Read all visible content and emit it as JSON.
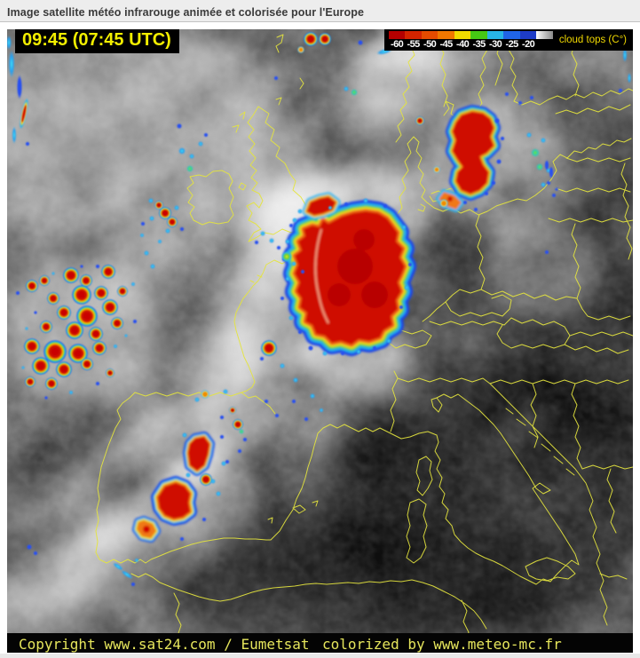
{
  "page": {
    "title": "Image satellite météo infrarouge animée et colorisée pour l'Europe"
  },
  "satellite": {
    "timestamp": "09:45 (07:45 UTC)",
    "legend": {
      "title": "cloud tops (C°)",
      "ticks": [
        "-60",
        "-55",
        "-50",
        "-45",
        "-40",
        "-35",
        "-30",
        "-25",
        "-20"
      ],
      "colors": [
        "#b40000",
        "#d42400",
        "#e64b00",
        "#f07800",
        "#f0dc00",
        "#46c814",
        "#28b4e6",
        "#2064e6",
        "#1e3cc8"
      ],
      "gray_segment": {
        "from": "#ffffff",
        "to": "#8a8a8a"
      }
    },
    "credits": {
      "copyright": "Copyright www.sat24.com / Eumetsat",
      "colorized": "colorized by www.meteo-mc.fr"
    },
    "colors": {
      "country_borders": "#e4e43e",
      "timestamp_text": "#f2ee00",
      "legend_title_text": "#f0d800",
      "credits_text": "#e6e65c",
      "cold_cloud_core": "#cf0a00"
    }
  }
}
